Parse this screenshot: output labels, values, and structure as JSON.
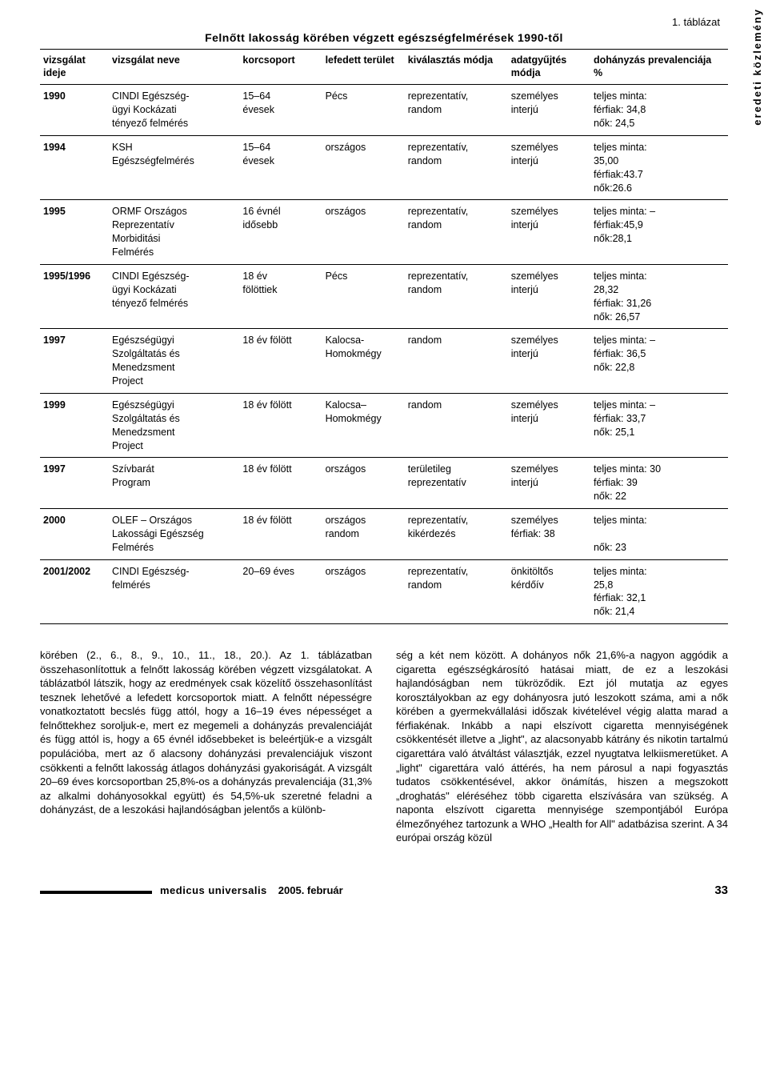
{
  "side_label": "eredeti közlemény",
  "table": {
    "caption": "1. táblázat",
    "title": "Felnőtt lakosság körében végzett egészségfelmérések 1990-től",
    "columns": [
      "vizsgálat\nideje",
      "vizsgálat\nneve",
      "korcsoport",
      "lefedett\nterület",
      "kiválasztás\nmódja",
      "adatgyűjtés\nmódja",
      "dohányzás\nprevalenciája %"
    ],
    "rows": [
      [
        "1990",
        "CINDI Egészség-\nügyi Kockázati\ntényező felmérés",
        "15–64\névesek",
        "Pécs",
        "reprezentatív,\nrandom",
        "személyes\ninterjú",
        "teljes minta:\nférfiak: 34,8\nnők: 24,5"
      ],
      [
        "1994",
        "KSH\nEgészségfelmérés",
        "15–64\névesek",
        "országos",
        "reprezentatív,\nrandom",
        "személyes\ninterjú",
        "teljes minta:\n35,00\nférfiak:43.7\nnők:26.6"
      ],
      [
        "1995",
        "ORMF Országos\nReprezentatív\nMorbiditási\nFelmérés",
        "16 évnél\nidősebb",
        "országos",
        "reprezentatív,\nrandom",
        "személyes\ninterjú",
        "teljes minta: –\nférfiak:45,9\nnők:28,1"
      ],
      [
        "1995/1996",
        "CINDI Egészség-\nügyi Kockázati\ntényező felmérés",
        "18 év\nfölöttiek",
        "Pécs",
        "reprezentatív,\nrandom",
        "személyes\ninterjú",
        "teljes minta:\n28,32\nférfiak: 31,26\nnők: 26,57"
      ],
      [
        "1997",
        "Egészségügyi\nSzolgáltatás és\nMenedzsment\nProject",
        "18 év fölött",
        "Kalocsa-\nHomokmégy",
        "random",
        "személyes\ninterjú",
        "teljes minta: –\nférfiak: 36,5\nnők: 22,8"
      ],
      [
        "1999",
        "Egészségügyi\nSzolgáltatás és\nMenedzsment\nProject",
        "18 év fölött",
        "Kalocsa–\nHomokmégy",
        "random",
        "személyes\ninterjú",
        "teljes minta: –\nférfiak: 33,7\nnők: 25,1"
      ],
      [
        "1997",
        "Szívbarát\nProgram",
        "18 év fölött",
        "országos",
        "területileg\nreprezentatív",
        "személyes\ninterjú",
        "teljes minta: 30\nférfiak: 39\nnők: 22"
      ],
      [
        "2000",
        "OLEF – Országos\nLakossági Egészség\nFelmérés",
        "18 év fölött",
        "országos\nrandom",
        "reprezentatív,\nkikérdezés",
        "személyes\nférfiak: 38",
        "teljes minta:\n\nnők: 23"
      ],
      [
        "2001/2002",
        "CINDI Egészség-\nfelmérés",
        "20–69 éves",
        "országos",
        "reprezentatív,\nrandom",
        "önkitöltős\nkérdőív",
        "teljes minta:\n25,8\nférfiak: 32,1\nnők: 21,4"
      ]
    ]
  },
  "body": {
    "left": "körében (2., 6., 8., 9., 10., 11., 18., 20.). Az 1. táblázatban összehasonlítottuk a felnőtt lakosság körében végzett vizsgálatokat. A táblázatból látszik, hogy az eredmények csak közelítő összehasonlítást tesznek lehetővé a lefedett korcsoportok miatt. A felnőtt népességre vonatkoztatott becslés függ attól, hogy a 16–19 éves népességet a felnőttekhez soroljuk-e, mert ez megemeli a dohányzás prevalenciáját és függ attól is, hogy a 65 évnél idősebbeket is beleértjük-e a vizsgált populációba, mert az ő alacsony dohányzási prevalenciájuk viszont csökkenti a felnőtt lakosság átlagos dohányzási gyakoriságát.\nA vizsgált 20–69 éves korcsoportban 25,8%-os a dohányzás prevalenciája (31,3% az alkalmi dohányosokkal együtt) és 54,5%-uk szeretné feladni a dohányzást, de a leszokási hajlandóságban jelentős a különb-",
    "right": "ség a két nem között. A dohányos nők 21,6%-a nagyon aggódik a cigaretta egészségkárosító hatásai miatt, de ez a leszokási hajlandóságban nem tükröződik. Ezt jól mutatja az egyes korosztályokban az egy dohányosra jutó leszokott száma, ami a nők körében a gyermekvállalási időszak kivételével végig alatta marad a férfiakénak. Inkább a napi elszívott cigaretta mennyiségének csökkentését illetve a „light\", az alacsonyabb kátrány és nikotin tartalmú cigarettára való átváltást választják, ezzel nyugtatva lelkiismeretüket. A „light\" cigarettára való áttérés, ha nem párosul a napi fogyasztás tudatos csökkentésével, akkor önámítás, hiszen a megszokott „droghatás\" eléréséhez több cigaretta elszívására van szükség. A naponta elszívott cigaretta mennyisége szempontjából Európa élmezőnyéhez tartozunk a WHO „Health for All\" adatbázisa szerint. A 34 európai ország közül"
  },
  "footer": {
    "journal": "medicus universalis",
    "date": "2005. február",
    "page": "33"
  }
}
